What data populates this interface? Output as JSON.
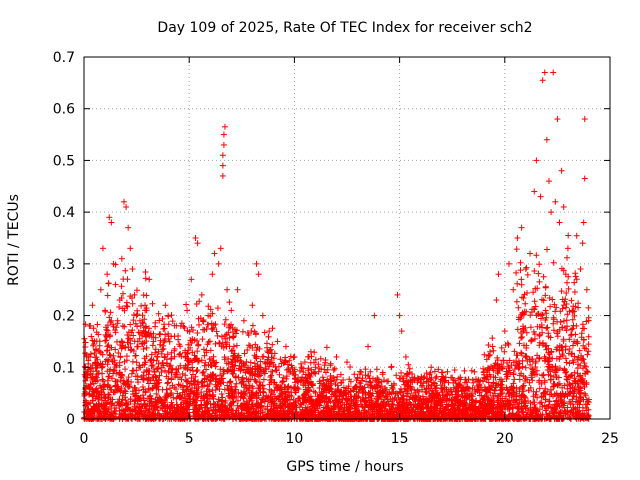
{
  "chart_data": {
    "type": "scatter",
    "title": "Day 109 of 2025, Rate Of TEC Index for receiver sch2",
    "xlabel": "GPS time / hours",
    "ylabel": "ROTI / TECUs",
    "xlim": [
      0,
      25
    ],
    "ylim": [
      0,
      0.7
    ],
    "xticks": [
      0,
      5,
      10,
      15,
      20,
      25
    ],
    "yticks": [
      0,
      0.1,
      0.2,
      0.3,
      0.4,
      0.5,
      0.6,
      0.7
    ],
    "grid": true,
    "marker": "plus",
    "color": "#ff0000",
    "series": [
      {
        "name": "ROTI",
        "points": [
          [
            0.1,
            0.05
          ],
          [
            0.2,
            0.12
          ],
          [
            0.3,
            0.18
          ],
          [
            0.4,
            0.22
          ],
          [
            0.5,
            0.15
          ],
          [
            0.6,
            0.08
          ],
          [
            0.8,
            0.25
          ],
          [
            0.9,
            0.33
          ],
          [
            1.0,
            0.21
          ],
          [
            1.1,
            0.28
          ],
          [
            1.2,
            0.39
          ],
          [
            1.3,
            0.38
          ],
          [
            1.4,
            0.3
          ],
          [
            1.5,
            0.26
          ],
          [
            1.6,
            0.19
          ],
          [
            1.7,
            0.23
          ],
          [
            1.8,
            0.31
          ],
          [
            1.9,
            0.42
          ],
          [
            2.0,
            0.41
          ],
          [
            2.1,
            0.37
          ],
          [
            2.2,
            0.33
          ],
          [
            2.3,
            0.29
          ],
          [
            2.4,
            0.24
          ],
          [
            2.5,
            0.2
          ],
          [
            2.7,
            0.18
          ],
          [
            2.9,
            0.22
          ],
          [
            3.1,
            0.27
          ],
          [
            3.3,
            0.15
          ],
          [
            3.5,
            0.12
          ],
          [
            3.7,
            0.1
          ],
          [
            4.0,
            0.2
          ],
          [
            4.3,
            0.16
          ],
          [
            4.6,
            0.18
          ],
          [
            4.9,
            0.21
          ],
          [
            5.1,
            0.27
          ],
          [
            5.3,
            0.35
          ],
          [
            5.4,
            0.34
          ],
          [
            5.6,
            0.24
          ],
          [
            5.9,
            0.2
          ],
          [
            6.1,
            0.28
          ],
          [
            6.2,
            0.32
          ],
          [
            6.4,
            0.3
          ],
          [
            6.5,
            0.33
          ],
          [
            6.6,
            0.47
          ],
          [
            6.6,
            0.49
          ],
          [
            6.6,
            0.51
          ],
          [
            6.65,
            0.53
          ],
          [
            6.65,
            0.55
          ],
          [
            6.7,
            0.565
          ],
          [
            6.8,
            0.25
          ],
          [
            7.0,
            0.21
          ],
          [
            7.3,
            0.25
          ],
          [
            7.6,
            0.19
          ],
          [
            8.0,
            0.22
          ],
          [
            8.2,
            0.3
          ],
          [
            8.3,
            0.28
          ],
          [
            8.5,
            0.2
          ],
          [
            8.8,
            0.17
          ],
          [
            9.2,
            0.15
          ],
          [
            9.6,
            0.14
          ],
          [
            10.0,
            0.12
          ],
          [
            10.5,
            0.11
          ],
          [
            11.0,
            0.1
          ],
          [
            11.5,
            0.09
          ],
          [
            12.0,
            0.12
          ],
          [
            12.5,
            0.11
          ],
          [
            13.0,
            0.08
          ],
          [
            13.5,
            0.14
          ],
          [
            13.8,
            0.2
          ],
          [
            14.2,
            0.09
          ],
          [
            14.6,
            0.1
          ],
          [
            14.9,
            0.24
          ],
          [
            15.0,
            0.2
          ],
          [
            15.1,
            0.17
          ],
          [
            15.3,
            0.12
          ],
          [
            15.6,
            0.08
          ],
          [
            16.0,
            0.07
          ],
          [
            16.5,
            0.1
          ],
          [
            17.0,
            0.09
          ],
          [
            17.5,
            0.08
          ],
          [
            18.0,
            0.06
          ],
          [
            18.5,
            0.07
          ],
          [
            19.0,
            0.09
          ],
          [
            19.3,
            0.13
          ],
          [
            19.6,
            0.23
          ],
          [
            19.7,
            0.28
          ],
          [
            20.0,
            0.17
          ],
          [
            20.2,
            0.3
          ],
          [
            20.4,
            0.25
          ],
          [
            20.6,
            0.35
          ],
          [
            20.8,
            0.37
          ],
          [
            21.0,
            0.29
          ],
          [
            21.2,
            0.32
          ],
          [
            21.4,
            0.44
          ],
          [
            21.5,
            0.5
          ],
          [
            21.7,
            0.43
          ],
          [
            21.8,
            0.655
          ],
          [
            21.9,
            0.67
          ],
          [
            22.0,
            0.54
          ],
          [
            22.1,
            0.46
          ],
          [
            22.2,
            0.4
          ],
          [
            22.3,
            0.67
          ],
          [
            22.4,
            0.42
          ],
          [
            22.5,
            0.58
          ],
          [
            22.6,
            0.38
          ],
          [
            22.7,
            0.48
          ],
          [
            22.8,
            0.41
          ],
          [
            22.9,
            0.28
          ],
          [
            23.0,
            0.33
          ],
          [
            23.2,
            0.21
          ],
          [
            23.4,
            0.18
          ],
          [
            23.6,
            0.29
          ],
          [
            23.7,
            0.34
          ],
          [
            23.75,
            0.38
          ],
          [
            23.8,
            0.465
          ],
          [
            23.8,
            0.58
          ],
          [
            23.9,
            0.25
          ]
        ]
      }
    ]
  }
}
